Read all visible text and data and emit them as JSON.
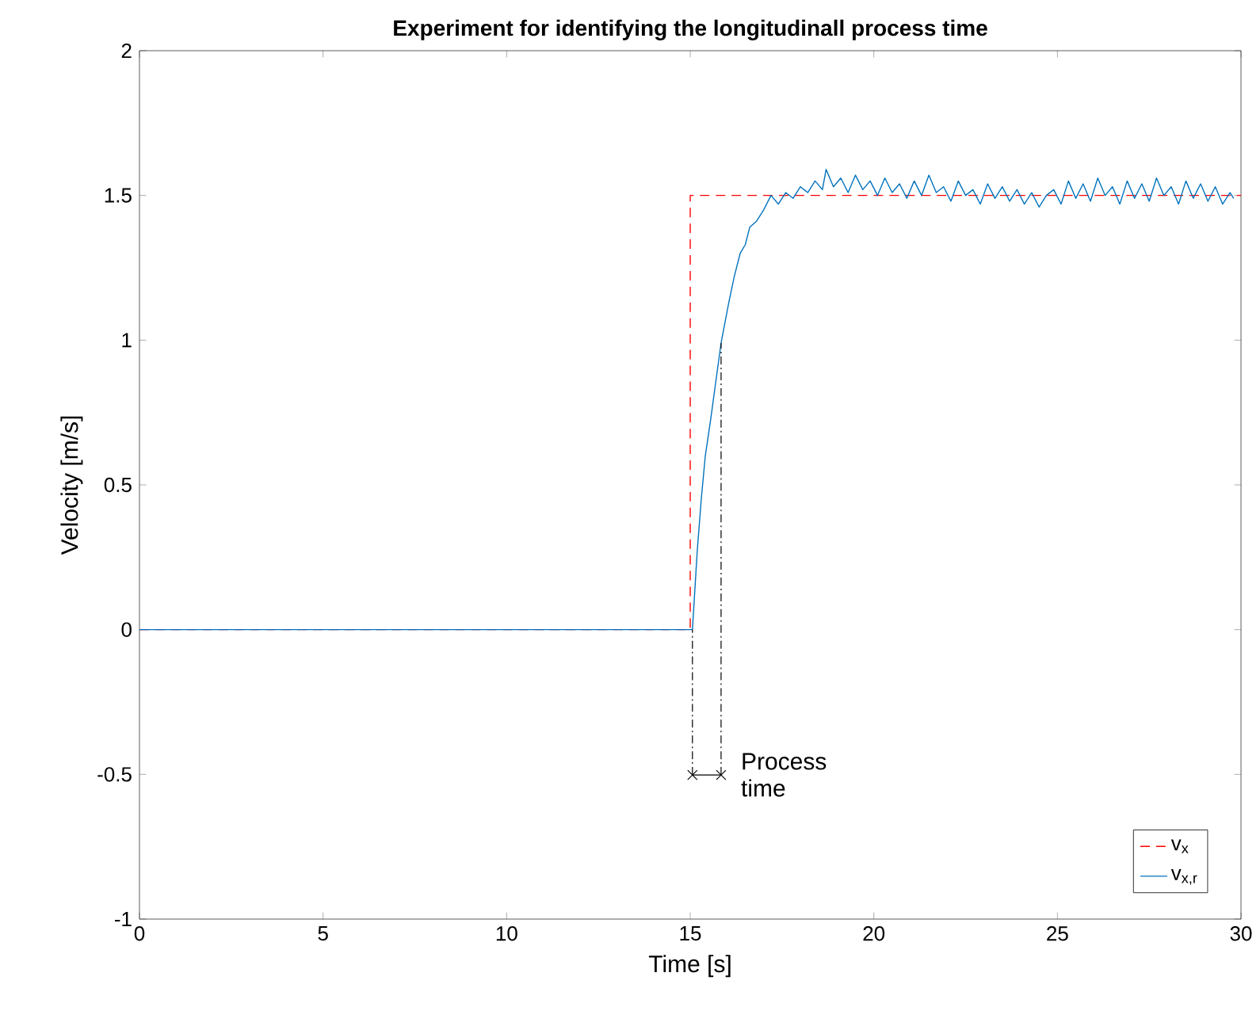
{
  "chart_data": {
    "type": "line",
    "title": "**Experiment for identifying the longitudinall process time**",
    "xlabel": "Time [s]",
    "ylabel": "Velocity [m/s]",
    "xlim": [
      0,
      30
    ],
    "ylim": [
      -1,
      2
    ],
    "xticks": [
      0,
      5,
      10,
      15,
      20,
      25,
      30
    ],
    "yticks": [
      -1,
      -0.5,
      0,
      0.5,
      1,
      1.5,
      2
    ],
    "grid": false,
    "legend": "bottom right",
    "annotations": [
      {
        "text": "Process time",
        "x": 15.84,
        "y": 0.99
      }
    ],
    "series": [
      {
        "name": "v$_{x}$",
        "color": "#ff0000",
        "line_style": "dashed",
        "x": [
          0,
          15,
          15,
          30
        ],
        "values": [
          0,
          0,
          1.5,
          1.5
        ]
      },
      {
        "name": "v$_{x,r}$",
        "color": "#0072bd",
        "line_style": "solid",
        "x": [
          0,
          15.06,
          15.19,
          15.3,
          15.41,
          15.55,
          15.7,
          15.84,
          16.05,
          16.2,
          16.36,
          16.5,
          16.62,
          16.8,
          17.0,
          17.2,
          17.4,
          17.6,
          17.8,
          18.0,
          18.2,
          18.4,
          18.6,
          18.7,
          18.9,
          19.1,
          19.3,
          19.5,
          19.7,
          19.9,
          20.1,
          20.3,
          20.5,
          20.7,
          20.9,
          21.1,
          21.3,
          21.5,
          21.7,
          21.9,
          22.1,
          22.3,
          22.5,
          22.7,
          22.9,
          23.1,
          23.3,
          23.5,
          23.7,
          23.9,
          24.1,
          24.3,
          24.5,
          24.7,
          24.9,
          25.1,
          25.3,
          25.5,
          25.7,
          25.9,
          26.1,
          26.3,
          26.5,
          26.7,
          26.9,
          27.1,
          27.3,
          27.5,
          27.7,
          27.9,
          28.1,
          28.3,
          28.5,
          28.7,
          28.9,
          29.1,
          29.3,
          29.5,
          29.7,
          29.8
        ],
        "values": [
          0,
          0,
          0.27,
          0.45,
          0.6,
          0.72,
          0.86,
          0.99,
          1.13,
          1.22,
          1.3,
          1.33,
          1.39,
          1.41,
          1.45,
          1.5,
          1.47,
          1.51,
          1.49,
          1.53,
          1.51,
          1.55,
          1.52,
          1.59,
          1.53,
          1.56,
          1.51,
          1.57,
          1.52,
          1.55,
          1.5,
          1.56,
          1.51,
          1.54,
          1.49,
          1.55,
          1.5,
          1.57,
          1.51,
          1.53,
          1.48,
          1.55,
          1.5,
          1.52,
          1.47,
          1.54,
          1.49,
          1.53,
          1.48,
          1.52,
          1.47,
          1.51,
          1.46,
          1.5,
          1.52,
          1.47,
          1.55,
          1.49,
          1.54,
          1.48,
          1.56,
          1.5,
          1.53,
          1.47,
          1.55,
          1.49,
          1.54,
          1.48,
          1.56,
          1.5,
          1.53,
          1.47,
          1.55,
          1.49,
          1.54,
          1.48,
          1.53,
          1.47,
          1.51,
          1.49
        ]
      }
    ]
  }
}
